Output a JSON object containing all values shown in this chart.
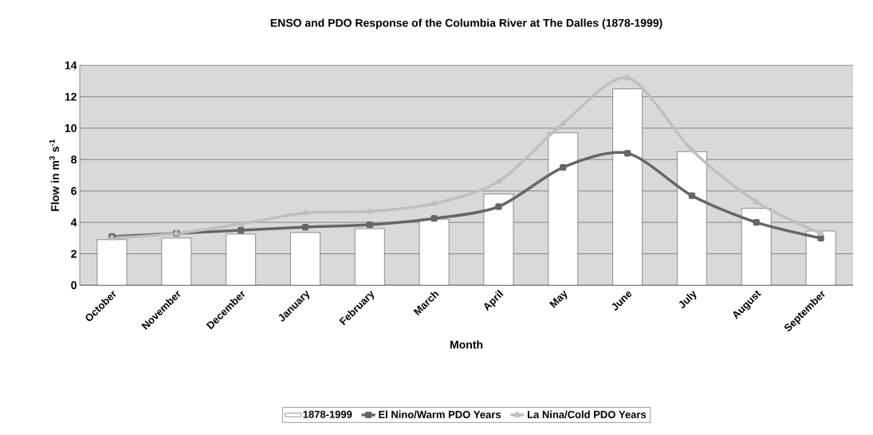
{
  "chart_data": {
    "type": "bar",
    "title": "ENSO and PDO Response of the Columbia River at The Dalles (1878-1999)",
    "xlabel": "Month",
    "ylabel": "Flow in m$^{3}$ s$^{-1}$",
    "categories": [
      "October",
      "November",
      "December",
      "January",
      "February",
      "March",
      "April",
      "May",
      "June",
      "July",
      "August",
      "September"
    ],
    "ylim": [
      0,
      14
    ],
    "yticks": [
      0,
      2,
      4,
      6,
      8,
      10,
      12,
      14
    ],
    "grid": "y",
    "legend": "bottom",
    "series": [
      {
        "name": "1878-1999",
        "color": "#ffffff",
        "values": [
          2.9,
          3.0,
          3.25,
          3.35,
          3.6,
          4.2,
          5.8,
          9.7,
          12.5,
          8.5,
          4.9,
          3.45
        ]
      },
      {
        "name": "El Nino/Warm PDO Years",
        "type": "line",
        "color": "#666666",
        "marker": "square",
        "values": [
          3.1,
          3.3,
          3.5,
          3.7,
          3.85,
          4.25,
          5.0,
          7.5,
          8.4,
          5.7,
          4.0,
          3.0
        ]
      },
      {
        "name": "La Nina/Cold PDO Years",
        "type": "line",
        "color": "#bfbfbf",
        "marker": "triangle",
        "values": [
          3.0,
          3.3,
          3.9,
          4.6,
          4.7,
          5.2,
          6.6,
          10.3,
          13.2,
          8.6,
          5.3,
          3.3
        ]
      }
    ]
  }
}
